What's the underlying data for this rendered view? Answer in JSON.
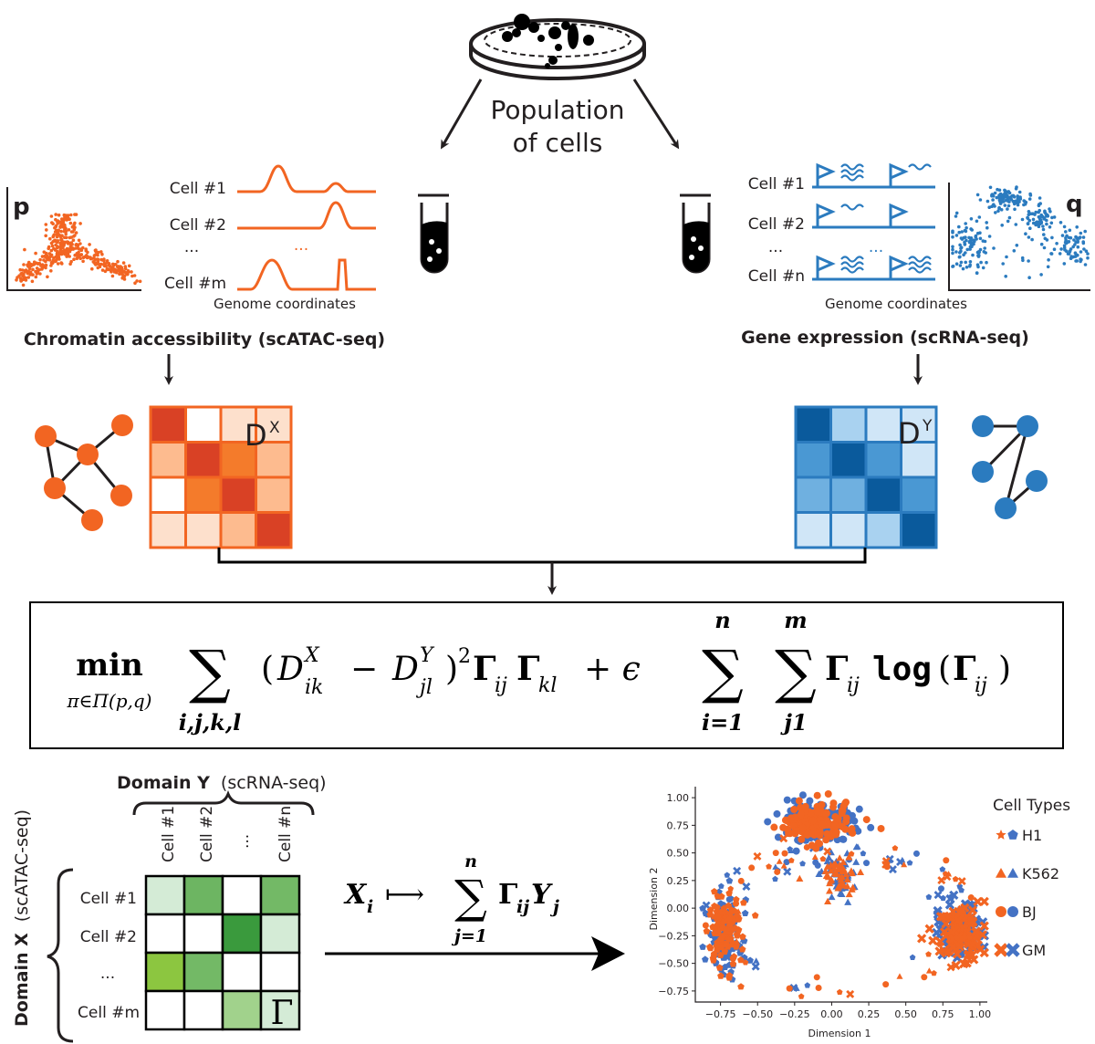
{
  "top": {
    "population_line1": "Population",
    "population_line2": "of cells"
  },
  "left_panel": {
    "plot_letter": "p",
    "cells": [
      "Cell #1",
      "Cell #2",
      "...",
      "Cell #m"
    ],
    "dots": "...",
    "axis_caption": "Genome coordinates",
    "modality": "Chromatin accessibility (scATAC-seq)",
    "matrix_label": "D",
    "matrix_sup": "X",
    "color": "#f26522"
  },
  "right_panel": {
    "plot_letter": "q",
    "cells": [
      "Cell #1",
      "Cell #2",
      "...",
      "Cell #n"
    ],
    "dots": "...",
    "axis_caption": "Genome coordinates",
    "modality": "Gene expression (scRNA-seq)",
    "matrix_label": "D",
    "matrix_sup": "Y",
    "color": "#2b7bbf"
  },
  "equation": {
    "min": "min",
    "min_sub": "π∈Π(p,q)",
    "sum_sub": "i,j,k,l",
    "D": "D",
    "DX_sup": "X",
    "DX_sub": "ik",
    "DY_sup": "Y",
    "DY_sub": "jl",
    "gamma": "Γ",
    "ij": "ij",
    "kl": "kl",
    "plus_eps": "+ ϵ",
    "sum1_top": "n",
    "sum1_bottom": "i=1",
    "sum2_top": "m",
    "sum2_bottom": "j1",
    "log": "log"
  },
  "bottom_left": {
    "domain_y": "Domain Y",
    "domain_y_paren": "(scRNA-seq)",
    "domain_x": "Domain X",
    "domain_x_paren": "(scATAC-seq)",
    "columns": [
      "Cell #1",
      "Cell #2",
      "...",
      "Cell #n"
    ],
    "rows": [
      "Cell #1",
      "Cell #2",
      "...",
      "Cell #m"
    ],
    "gamma_cell": "Γ",
    "grid": [
      [
        "#d4ebd6",
        "#6db562",
        "#ffffff",
        "#73b966"
      ],
      [
        "#ffffff",
        "#ffffff",
        "#3a9a3d",
        "#d4ebd6"
      ],
      [
        "#8cc640",
        "#73b966",
        "#ffffff",
        "#ffffff"
      ],
      [
        "#ffffff",
        "#ffffff",
        "#a1d28c",
        "#d4ebd6"
      ]
    ]
  },
  "mapping": {
    "X": "X",
    "i": "i",
    "mapsto": "⟼",
    "top": "n",
    "bottom": "j=1",
    "gamma": "Γ",
    "ij": "ij",
    "Y": "Y",
    "j": "j"
  },
  "chart_data": {
    "type": "scatter",
    "xlabel": "Dimension 1",
    "ylabel": "Dimension 2",
    "xlim": [
      -0.92,
      1.05
    ],
    "ylim": [
      -0.85,
      1.1
    ],
    "xticks": [
      "−0.75",
      "−0.50",
      "−0.25",
      "0.00",
      "0.25",
      "0.50",
      "0.75",
      "1.00"
    ],
    "xtick_values": [
      -0.75,
      -0.5,
      -0.25,
      0,
      0.25,
      0.5,
      0.75,
      1.0
    ],
    "yticks": [
      "1.00",
      "0.75",
      "0.50",
      "0.25",
      "0.00",
      "−0.25",
      "−0.50",
      "−0.75"
    ],
    "ytick_values": [
      1.0,
      0.75,
      0.5,
      0.25,
      0,
      -0.25,
      -0.5,
      -0.75
    ],
    "legend_title": "Cell Types",
    "legend_placement": "right",
    "series": [
      {
        "name": "H1",
        "shapes": [
          "star",
          "pentagon"
        ]
      },
      {
        "name": "K562",
        "shapes": [
          "triangle",
          "triangle"
        ]
      },
      {
        "name": "BJ",
        "shapes": [
          "circle",
          "circle"
        ]
      },
      {
        "name": "GM",
        "shapes": [
          "cross",
          "cross"
        ]
      }
    ],
    "domain_colors": [
      "#f26522",
      "#4472c4"
    ],
    "clusters": [
      {
        "center": [
          -0.1,
          0.78
        ],
        "spread": [
          0.12,
          0.09
        ]
      },
      {
        "center": [
          0.05,
          0.3
        ],
        "spread": [
          0.06,
          0.1
        ]
      },
      {
        "center": [
          -0.72,
          -0.25
        ],
        "spread": [
          0.06,
          0.17
        ]
      },
      {
        "center": [
          0.88,
          -0.2
        ],
        "spread": [
          0.08,
          0.12
        ]
      }
    ]
  }
}
